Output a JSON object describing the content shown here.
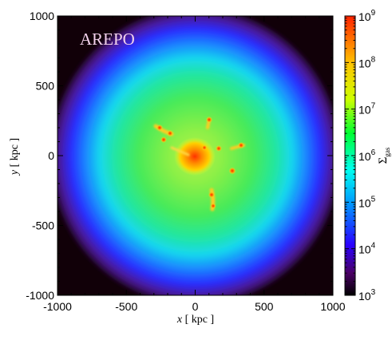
{
  "panel_label": "AREPO",
  "x_axis": {
    "label_var": "x",
    "label_unit": " [ kpc ]",
    "range": [
      -1000,
      1000
    ],
    "ticks": [
      "-1000",
      "-500",
      "0",
      "500",
      "1000"
    ]
  },
  "y_axis": {
    "label_var": "y",
    "label_unit": " [ kpc ]",
    "range": [
      -1000,
      1000
    ],
    "ticks": [
      "-1000",
      "-500",
      "0",
      "500",
      "1000"
    ]
  },
  "colorbar": {
    "label_symbol": "Σ",
    "label_subscript": "gas",
    "scale": "log",
    "range": [
      1000,
      1000000000
    ],
    "tick_base": "10",
    "tick_exponents": [
      "3",
      "4",
      "5",
      "6",
      "7",
      "8",
      "9"
    ],
    "colormap": [
      "#000000",
      "#4b0066",
      "#2a00ff",
      "#0099ff",
      "#00ffee",
      "#00ff33",
      "#ccff00",
      "#ffc400",
      "#ff2200"
    ]
  },
  "colors": {
    "background_dark": "#110008",
    "halo_outer": "#5a1a8a",
    "halo_blue": "#2233ff",
    "halo_cyan": "#22ddee",
    "halo_green": "#55ee55",
    "core": "#ff5500"
  }
}
